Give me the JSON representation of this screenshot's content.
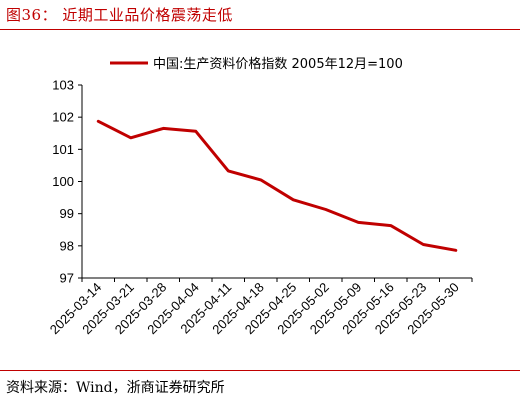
{
  "figure": {
    "title": "图36：  近期工业品价格震荡走低",
    "source": "资料来源：Wind，浙商证券研究所",
    "accent_color": "#c00000"
  },
  "chart_data": {
    "type": "line",
    "categories": [
      "2025-03-14",
      "2025-03-21",
      "2025-03-28",
      "2025-04-04",
      "2025-04-11",
      "2025-04-18",
      "2025-04-25",
      "2025-05-02",
      "2025-05-09",
      "2025-05-16",
      "2025-05-23",
      "2025-05-30"
    ],
    "series": [
      {
        "name": "中国:生产资料价格指数 2005年12月=100",
        "values": [
          101.87,
          101.36,
          101.65,
          101.56,
          100.33,
          100.05,
          99.43,
          99.13,
          98.73,
          98.63,
          98.04,
          97.86
        ],
        "color": "#c00000"
      }
    ],
    "ylim": [
      97,
      103
    ],
    "yticks": [
      "97",
      "98",
      "99",
      "100",
      "101",
      "102",
      "103"
    ],
    "grid": false,
    "legend": "top-center",
    "xlabel": "",
    "ylabel": ""
  }
}
